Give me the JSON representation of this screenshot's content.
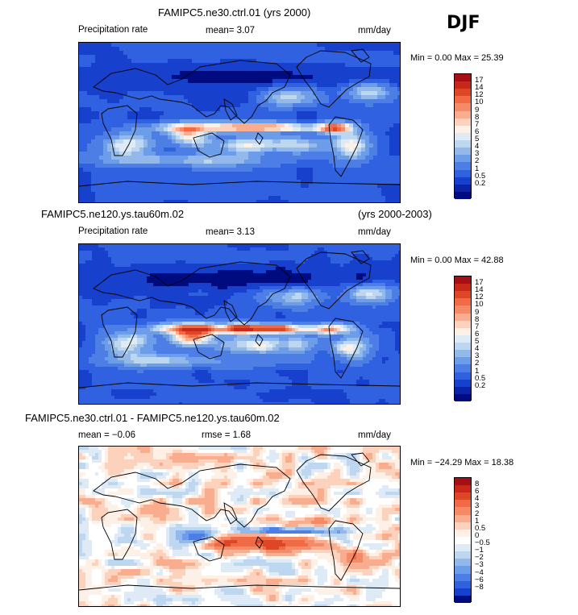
{
  "season": "DJF",
  "panels": [
    {
      "id": "p1",
      "title": "FAMIPC5.ne30.ctrl.01 (yrs 2000)",
      "title_right": "",
      "left_label": "Precipitation rate",
      "stat_label": "mean=   3.07",
      "stat2_label": "",
      "units": "mm/day",
      "minmax": "Min =   0.00 Max =  25.39",
      "kind": "abs",
      "colorbar_labels": [
        "17",
        "14",
        "12",
        "10",
        "9",
        "8",
        "7",
        "6",
        "5",
        "4",
        "3",
        "2",
        "1",
        "0.5",
        "0.2"
      ]
    },
    {
      "id": "p2",
      "title": "FAMIPC5.ne120.ys.tau60m.02",
      "title_right": "(yrs 2000-2003)",
      "left_label": "Precipitation rate",
      "stat_label": "mean=   3.13",
      "stat2_label": "",
      "units": "mm/day",
      "minmax": "Min =   0.00 Max =  42.88",
      "kind": "abs",
      "colorbar_labels": [
        "17",
        "14",
        "12",
        "10",
        "9",
        "8",
        "7",
        "6",
        "5",
        "4",
        "3",
        "2",
        "1",
        "0.5",
        "0.2"
      ]
    },
    {
      "id": "p3",
      "title": "FAMIPC5.ne30.ctrl.01 - FAMIPC5.ne120.ys.tau60m.02",
      "title_right": "",
      "left_label": "mean =  −0.06",
      "stat_label": "rmse =   1.68",
      "stat2_label": "",
      "units": "mm/day",
      "minmax": "Min = −24.29 Max =  18.38",
      "kind": "diff",
      "colorbar_labels": [
        "8",
        "6",
        "4",
        "3",
        "2",
        "1",
        "0.5",
        "0",
        "−0.5",
        "−1",
        "−2",
        "−3",
        "−4",
        "−6",
        "−8"
      ]
    }
  ],
  "colors": {
    "abs": [
      "#a50f15",
      "#c8281a",
      "#de4726",
      "#ef6a45",
      "#f58a66",
      "#f9ad8e",
      "#fcd2bc",
      "#fdf0e6",
      "#deebf7",
      "#bdd7f0",
      "#93b8ea",
      "#6d9ce8",
      "#4d7ee6",
      "#2f61e0",
      "#1740cc",
      "#0a24a8",
      "#000b80"
    ],
    "diff": [
      "#a50f15",
      "#c8281a",
      "#de4726",
      "#ef6a45",
      "#f58a66",
      "#f9ad8e",
      "#fcd2bc",
      "#fdf0e6",
      "#ffffff",
      "#deebf7",
      "#bdd7f0",
      "#93b8ea",
      "#6d9ce8",
      "#4d7ee6",
      "#2f61e0",
      "#1740cc",
      "#000b80"
    ]
  },
  "chart_data": [
    {
      "type": "heatmap",
      "title": "FAMIPC5.ne30.ctrl.01 (yrs 2000)",
      "variable": "Precipitation rate",
      "units": "mm/day",
      "mean": 3.07,
      "min": 0.0,
      "max": 25.39,
      "levels": [
        0.2,
        0.5,
        1,
        2,
        3,
        4,
        5,
        6,
        7,
        8,
        9,
        10,
        12,
        14,
        17
      ],
      "grid": false
    },
    {
      "type": "heatmap",
      "title": "FAMIPC5.ne120.ys.tau60m.02 (yrs 2000-2003)",
      "variable": "Precipitation rate",
      "units": "mm/day",
      "mean": 3.13,
      "min": 0.0,
      "max": 42.88,
      "levels": [
        0.2,
        0.5,
        1,
        2,
        3,
        4,
        5,
        6,
        7,
        8,
        9,
        10,
        12,
        14,
        17
      ],
      "grid": false
    },
    {
      "type": "heatmap",
      "title": "FAMIPC5.ne30.ctrl.01 - FAMIPC5.ne120.ys.tau60m.02",
      "units": "mm/day",
      "mean": -0.06,
      "rmse": 1.68,
      "min": -24.29,
      "max": 18.38,
      "levels": [
        -8,
        -6,
        -4,
        -3,
        -2,
        -1,
        -0.5,
        0,
        0.5,
        1,
        2,
        3,
        4,
        6,
        8
      ],
      "grid": false
    }
  ]
}
